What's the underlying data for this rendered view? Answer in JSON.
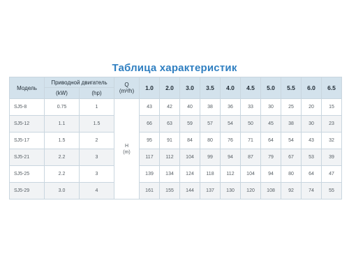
{
  "title": "Таблица характеристик",
  "header": {
    "model": "Модель",
    "motor": "Приводной двигатель",
    "kw": "(kW)",
    "hp": "(hp)",
    "q": "Q",
    "q_unit": "(m³/h)",
    "flows": [
      "1.0",
      "2.0",
      "3.0",
      "3.5",
      "4.0",
      "4.5",
      "5.0",
      "5.5",
      "6.0",
      "6.5"
    ]
  },
  "head_label": {
    "h": "H",
    "unit": "(m)"
  },
  "rows": [
    {
      "model": "SJ5-8",
      "kw": "0.75",
      "hp": "1",
      "values": [
        "43",
        "42",
        "40",
        "38",
        "36",
        "33",
        "30",
        "25",
        "20",
        "15"
      ]
    },
    {
      "model": "SJ5-12",
      "kw": "1.1",
      "hp": "1.5",
      "values": [
        "66",
        "63",
        "59",
        "57",
        "54",
        "50",
        "45",
        "38",
        "30",
        "23"
      ]
    },
    {
      "model": "SJ5-17",
      "kw": "1.5",
      "hp": "2",
      "values": [
        "95",
        "91",
        "84",
        "80",
        "76",
        "71",
        "64",
        "54",
        "43",
        "32"
      ]
    },
    {
      "model": "SJ5-21",
      "kw": "2.2",
      "hp": "3",
      "values": [
        "117",
        "112",
        "104",
        "99",
        "94",
        "87",
        "79",
        "67",
        "53",
        "39"
      ]
    },
    {
      "model": "SJ5-25",
      "kw": "2.2",
      "hp": "3",
      "values": [
        "139",
        "134",
        "124",
        "118",
        "112",
        "104",
        "94",
        "80",
        "64",
        "47"
      ]
    },
    {
      "model": "SJ5-29",
      "kw": "3.0",
      "hp": "4",
      "values": [
        "161",
        "155",
        "144",
        "137",
        "130",
        "120",
        "108",
        "92",
        "74",
        "55"
      ]
    }
  ]
}
